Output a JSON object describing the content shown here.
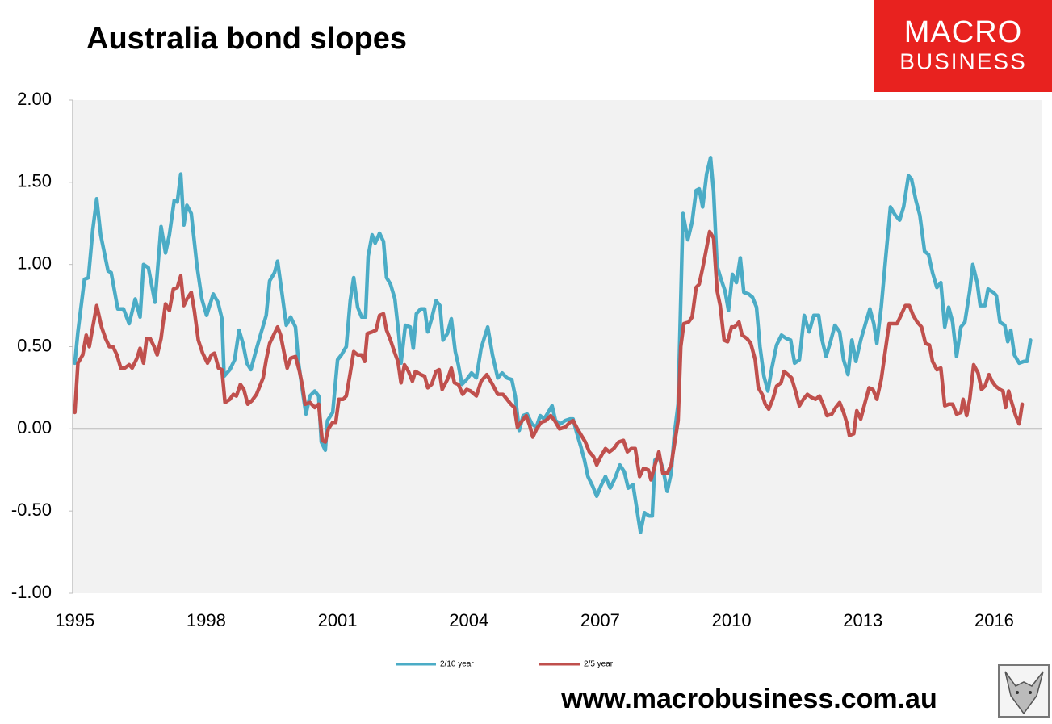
{
  "chart_data": {
    "type": "line",
    "title": "Australia bond slopes",
    "xlim": [
      1994.95,
      2017.08
    ],
    "xticks": [
      1995,
      1998,
      2001,
      2004,
      2007,
      2010,
      2013,
      2016
    ],
    "ylim": [
      -1,
      2
    ],
    "yticks": [
      {
        "value": -1,
        "label": "-1.00"
      },
      {
        "value": -0.5,
        "label": "-0.50"
      },
      {
        "value": 0,
        "label": "0.00"
      },
      {
        "value": 0.5,
        "label": "0.50"
      },
      {
        "value": 1,
        "label": "1.00"
      },
      {
        "value": 1.5,
        "label": "1.50"
      },
      {
        "value": 2,
        "label": "2.00"
      }
    ],
    "grid": false,
    "legend": "bottom",
    "series": [
      {
        "name": "2/10 year",
        "color": "#4bacc6",
        "x": [
          1995.0,
          1995.07,
          1995.22,
          1995.31,
          1995.41,
          1995.5,
          1995.59,
          1995.76,
          1995.83,
          1995.98,
          1996.11,
          1996.24,
          1996.38,
          1996.49,
          1996.57,
          1996.68,
          1996.83,
          1996.97,
          1997.07,
          1997.16,
          1997.27,
          1997.34,
          1997.42,
          1997.49,
          1997.56,
          1997.66,
          1997.79,
          1997.9,
          1998.01,
          1998.16,
          1998.27,
          1998.36,
          1998.41,
          1998.54,
          1998.65,
          1998.75,
          1998.84,
          1998.93,
          1999.02,
          1999.13,
          1999.26,
          1999.37,
          1999.45,
          1999.56,
          1999.63,
          1999.74,
          1999.83,
          1999.93,
          2000.04,
          2000.11,
          2000.2,
          2000.28,
          2000.37,
          2000.48,
          2000.57,
          2000.63,
          2000.72,
          2000.77,
          2000.89,
          2001.0,
          2001.09,
          2001.2,
          2001.29,
          2001.37,
          2001.46,
          2001.55,
          2001.64,
          2001.7,
          2001.79,
          2001.86,
          2001.96,
          2002.05,
          2002.12,
          2002.21,
          2002.31,
          2002.4,
          2002.45,
          2002.55,
          2002.66,
          2002.73,
          2002.8,
          2002.9,
          2002.99,
          2003.06,
          2003.15,
          2003.25,
          2003.34,
          2003.41,
          2003.51,
          2003.6,
          2003.69,
          2003.76,
          2003.84,
          2003.95,
          2004.06,
          2004.17,
          2004.28,
          2004.43,
          2004.54,
          2004.66,
          2004.76,
          2004.87,
          2004.98,
          2005.06,
          2005.15,
          2005.24,
          2005.33,
          2005.44,
          2005.54,
          2005.63,
          2005.72,
          2005.81,
          2005.9,
          2005.98,
          2006.09,
          2006.2,
          2006.31,
          2006.38,
          2006.46,
          2006.57,
          2006.64,
          2006.72,
          2006.83,
          2006.92,
          2007.01,
          2007.12,
          2007.23,
          2007.34,
          2007.45,
          2007.55,
          2007.64,
          2007.75,
          2007.82,
          2007.92,
          2008.01,
          2008.12,
          2008.19,
          2008.25,
          2008.34,
          2008.43,
          2008.53,
          2008.62,
          2008.69,
          2008.78,
          2008.89,
          2009.0,
          2009.1,
          2009.19,
          2009.26,
          2009.34,
          2009.43,
          2009.52,
          2009.59,
          2009.67,
          2009.76,
          2009.85,
          2009.93,
          2010.02,
          2010.11,
          2010.2,
          2010.28,
          2010.39,
          2010.48,
          2010.57,
          2010.65,
          2010.74,
          2010.83,
          2010.92,
          2011.03,
          2011.14,
          2011.25,
          2011.35,
          2011.44,
          2011.55,
          2011.66,
          2011.77,
          2011.88,
          2011.99,
          2012.07,
          2012.16,
          2012.25,
          2012.36,
          2012.47,
          2012.56,
          2012.66,
          2012.75,
          2012.84,
          2012.95,
          2013.06,
          2013.16,
          2013.25,
          2013.32,
          2013.42,
          2013.52,
          2013.63,
          2013.74,
          2013.84,
          2013.93,
          2014.04,
          2014.11,
          2014.21,
          2014.3,
          2014.41,
          2014.5,
          2014.59,
          2014.69,
          2014.78,
          2014.87,
          2014.96,
          2015.05,
          2015.14,
          2015.24,
          2015.33,
          2015.44,
          2015.51,
          2015.61,
          2015.68,
          2015.79,
          2015.86,
          2015.98,
          2016.05,
          2016.13,
          2016.24,
          2016.31,
          2016.38,
          2016.46,
          2016.57,
          2016.68,
          2016.75,
          2016.83
        ],
        "values": [
          0.4,
          0.59,
          0.91,
          0.92,
          1.21,
          1.4,
          1.18,
          0.96,
          0.95,
          0.73,
          0.73,
          0.64,
          0.79,
          0.68,
          1.0,
          0.98,
          0.77,
          1.23,
          1.07,
          1.18,
          1.39,
          1.38,
          1.55,
          1.24,
          1.36,
          1.31,
          0.99,
          0.79,
          0.69,
          0.82,
          0.77,
          0.67,
          0.32,
          0.36,
          0.42,
          0.6,
          0.52,
          0.4,
          0.36,
          0.47,
          0.59,
          0.69,
          0.9,
          0.95,
          1.02,
          0.81,
          0.63,
          0.68,
          0.62,
          0.4,
          0.23,
          0.09,
          0.2,
          0.23,
          0.2,
          -0.08,
          -0.13,
          0.05,
          0.1,
          0.42,
          0.45,
          0.5,
          0.78,
          0.92,
          0.74,
          0.68,
          0.68,
          1.05,
          1.18,
          1.13,
          1.19,
          1.14,
          0.92,
          0.88,
          0.79,
          0.57,
          0.4,
          0.63,
          0.62,
          0.49,
          0.7,
          0.73,
          0.73,
          0.59,
          0.67,
          0.78,
          0.75,
          0.54,
          0.58,
          0.67,
          0.47,
          0.39,
          0.27,
          0.3,
          0.34,
          0.31,
          0.49,
          0.62,
          0.45,
          0.31,
          0.34,
          0.31,
          0.3,
          0.2,
          -0.01,
          0.08,
          0.09,
          0.03,
          0.01,
          0.08,
          0.06,
          0.1,
          0.14,
          0.05,
          0.03,
          0.05,
          0.06,
          0.06,
          -0.02,
          -0.12,
          -0.19,
          -0.29,
          -0.35,
          -0.41,
          -0.35,
          -0.29,
          -0.36,
          -0.3,
          -0.22,
          -0.26,
          -0.36,
          -0.34,
          -0.46,
          -0.63,
          -0.51,
          -0.53,
          -0.53,
          -0.19,
          -0.17,
          -0.24,
          -0.38,
          -0.27,
          -0.04,
          0.15,
          1.31,
          1.15,
          1.26,
          1.45,
          1.46,
          1.35,
          1.55,
          1.65,
          1.44,
          0.99,
          0.91,
          0.84,
          0.72,
          0.94,
          0.89,
          1.04,
          0.83,
          0.82,
          0.8,
          0.74,
          0.5,
          0.32,
          0.23,
          0.37,
          0.51,
          0.57,
          0.55,
          0.54,
          0.4,
          0.42,
          0.69,
          0.59,
          0.69,
          0.69,
          0.54,
          0.44,
          0.52,
          0.63,
          0.59,
          0.42,
          0.33,
          0.54,
          0.41,
          0.54,
          0.64,
          0.73,
          0.64,
          0.52,
          0.74,
          1.04,
          1.35,
          1.3,
          1.27,
          1.35,
          1.54,
          1.52,
          1.39,
          1.3,
          1.08,
          1.06,
          0.95,
          0.86,
          0.89,
          0.62,
          0.74,
          0.65,
          0.44,
          0.62,
          0.65,
          0.84,
          1.0,
          0.89,
          0.75,
          0.75,
          0.85,
          0.83,
          0.81,
          0.65,
          0.63,
          0.53,
          0.6,
          0.45,
          0.4,
          0.41,
          0.41,
          0.54
        ]
      },
      {
        "name": "2/5 year",
        "color": "#c0504d",
        "x": [
          1995.0,
          1995.07,
          1995.18,
          1995.26,
          1995.33,
          1995.41,
          1995.5,
          1995.61,
          1995.7,
          1995.79,
          1995.87,
          1995.96,
          1996.05,
          1996.14,
          1996.24,
          1996.31,
          1996.42,
          1996.49,
          1996.57,
          1996.64,
          1996.72,
          1996.81,
          1996.88,
          1996.97,
          1997.07,
          1997.16,
          1997.25,
          1997.34,
          1997.42,
          1997.49,
          1997.56,
          1997.66,
          1997.73,
          1997.82,
          1997.92,
          1998.03,
          1998.12,
          1998.19,
          1998.28,
          1998.36,
          1998.43,
          1998.54,
          1998.62,
          1998.69,
          1998.78,
          1998.86,
          1998.95,
          1999.04,
          1999.15,
          1999.21,
          1999.3,
          1999.37,
          1999.45,
          1999.54,
          1999.63,
          1999.7,
          1999.79,
          1999.85,
          1999.93,
          2000.04,
          2000.13,
          2000.2,
          2000.26,
          2000.37,
          2000.48,
          2000.57,
          2000.65,
          2000.72,
          2000.79,
          2000.89,
          2000.96,
          2001.03,
          2001.13,
          2001.2,
          2001.29,
          2001.37,
          2001.46,
          2001.55,
          2001.62,
          2001.68,
          2001.79,
          2001.88,
          2001.96,
          2002.05,
          2002.12,
          2002.21,
          2002.31,
          2002.38,
          2002.45,
          2002.53,
          2002.62,
          2002.71,
          2002.78,
          2002.9,
          2002.99,
          2003.06,
          2003.15,
          2003.25,
          2003.32,
          2003.39,
          2003.51,
          2003.6,
          2003.67,
          2003.76,
          2003.86,
          2003.95,
          2004.04,
          2004.17,
          2004.28,
          2004.41,
          2004.54,
          2004.66,
          2004.78,
          2004.87,
          2004.96,
          2005.04,
          2005.11,
          2005.22,
          2005.31,
          2005.39,
          2005.46,
          2005.55,
          2005.65,
          2005.76,
          2005.87,
          2005.96,
          2006.07,
          2006.2,
          2006.31,
          2006.38,
          2006.48,
          2006.57,
          2006.66,
          2006.75,
          2006.85,
          2006.92,
          2007.01,
          2007.12,
          2007.21,
          2007.31,
          2007.42,
          2007.53,
          2007.62,
          2007.71,
          2007.8,
          2007.9,
          2007.99,
          2008.1,
          2008.16,
          2008.25,
          2008.34,
          2008.43,
          2008.53,
          2008.62,
          2008.71,
          2008.78,
          2008.84,
          2008.91,
          2009.02,
          2009.1,
          2009.19,
          2009.26,
          2009.35,
          2009.45,
          2009.5,
          2009.59,
          2009.67,
          2009.74,
          2009.83,
          2009.91,
          2010.0,
          2010.07,
          2010.17,
          2010.24,
          2010.35,
          2010.44,
          2010.54,
          2010.61,
          2010.7,
          2010.77,
          2010.85,
          2010.94,
          2011.03,
          2011.13,
          2011.2,
          2011.29,
          2011.37,
          2011.46,
          2011.55,
          2011.64,
          2011.73,
          2011.83,
          2011.92,
          2012.01,
          2012.09,
          2012.18,
          2012.29,
          2012.38,
          2012.47,
          2012.56,
          2012.64,
          2012.69,
          2012.79,
          2012.86,
          2012.95,
          2013.04,
          2013.14,
          2013.23,
          2013.32,
          2013.42,
          2013.51,
          2013.6,
          2013.69,
          2013.78,
          2013.87,
          2013.97,
          2014.06,
          2014.15,
          2014.24,
          2014.34,
          2014.43,
          2014.52,
          2014.59,
          2014.69,
          2014.78,
          2014.87,
          2014.96,
          2015.05,
          2015.14,
          2015.24,
          2015.29,
          2015.37,
          2015.44,
          2015.53,
          2015.63,
          2015.71,
          2015.79,
          2015.88,
          2015.95,
          2016.03,
          2016.13,
          2016.2,
          2016.26,
          2016.33,
          2016.4,
          2016.49,
          2016.57,
          2016.64
        ],
        "values": [
          0.1,
          0.4,
          0.45,
          0.57,
          0.5,
          0.62,
          0.75,
          0.62,
          0.55,
          0.5,
          0.5,
          0.45,
          0.37,
          0.37,
          0.39,
          0.37,
          0.43,
          0.49,
          0.4,
          0.55,
          0.55,
          0.5,
          0.45,
          0.55,
          0.76,
          0.72,
          0.85,
          0.86,
          0.93,
          0.75,
          0.79,
          0.83,
          0.72,
          0.54,
          0.46,
          0.4,
          0.45,
          0.46,
          0.37,
          0.36,
          0.16,
          0.18,
          0.21,
          0.2,
          0.27,
          0.24,
          0.15,
          0.17,
          0.21,
          0.25,
          0.31,
          0.42,
          0.52,
          0.57,
          0.62,
          0.57,
          0.45,
          0.37,
          0.43,
          0.44,
          0.35,
          0.26,
          0.15,
          0.16,
          0.13,
          0.15,
          -0.07,
          -0.08,
          0.0,
          0.04,
          0.04,
          0.18,
          0.18,
          0.2,
          0.34,
          0.47,
          0.45,
          0.45,
          0.41,
          0.58,
          0.59,
          0.6,
          0.69,
          0.7,
          0.6,
          0.54,
          0.46,
          0.41,
          0.28,
          0.39,
          0.35,
          0.29,
          0.35,
          0.33,
          0.32,
          0.25,
          0.27,
          0.35,
          0.36,
          0.24,
          0.3,
          0.37,
          0.28,
          0.27,
          0.21,
          0.24,
          0.23,
          0.2,
          0.29,
          0.33,
          0.27,
          0.21,
          0.21,
          0.18,
          0.15,
          0.13,
          0.01,
          0.05,
          0.08,
          0.02,
          -0.05,
          0.0,
          0.04,
          0.05,
          0.08,
          0.05,
          0.0,
          0.01,
          0.04,
          0.05,
          0.0,
          -0.04,
          -0.08,
          -0.14,
          -0.17,
          -0.22,
          -0.17,
          -0.12,
          -0.14,
          -0.12,
          -0.08,
          -0.07,
          -0.14,
          -0.12,
          -0.12,
          -0.29,
          -0.24,
          -0.25,
          -0.31,
          -0.22,
          -0.14,
          -0.27,
          -0.27,
          -0.22,
          -0.07,
          0.05,
          0.5,
          0.64,
          0.65,
          0.68,
          0.86,
          0.88,
          0.99,
          1.13,
          1.2,
          1.16,
          0.84,
          0.75,
          0.54,
          0.53,
          0.62,
          0.62,
          0.65,
          0.57,
          0.55,
          0.52,
          0.42,
          0.25,
          0.21,
          0.15,
          0.12,
          0.18,
          0.26,
          0.28,
          0.35,
          0.33,
          0.31,
          0.23,
          0.14,
          0.18,
          0.21,
          0.19,
          0.18,
          0.2,
          0.15,
          0.08,
          0.09,
          0.13,
          0.16,
          0.1,
          0.03,
          -0.04,
          -0.03,
          0.11,
          0.06,
          0.15,
          0.25,
          0.24,
          0.18,
          0.3,
          0.47,
          0.64,
          0.64,
          0.64,
          0.69,
          0.75,
          0.75,
          0.69,
          0.65,
          0.62,
          0.52,
          0.51,
          0.41,
          0.36,
          0.37,
          0.14,
          0.15,
          0.15,
          0.09,
          0.1,
          0.18,
          0.08,
          0.18,
          0.39,
          0.34,
          0.24,
          0.26,
          0.33,
          0.29,
          0.26,
          0.24,
          0.23,
          0.13,
          0.23,
          0.16,
          0.08,
          0.03,
          0.15
        ]
      }
    ]
  },
  "logo": {
    "line1": "MACRO",
    "line2": "BUSINESS"
  },
  "footer_url": "www.macrobusiness.com.au"
}
